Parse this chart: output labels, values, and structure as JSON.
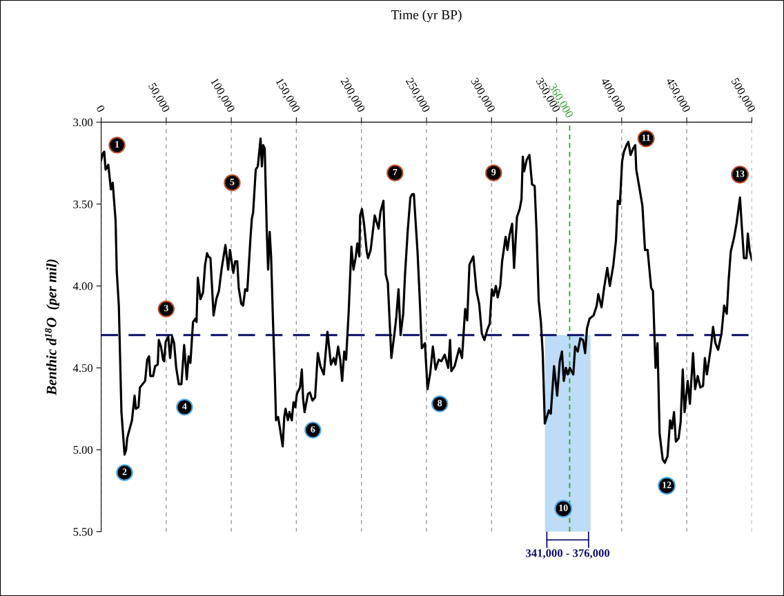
{
  "chart_data": {
    "type": "line",
    "xlabel": "Time (yr BP)",
    "ylabel": "Benthic d$^{18}$O  (per mil)",
    "xlim": [
      0,
      500000
    ],
    "ylim": [
      5.5,
      3.0
    ],
    "xticks": [
      0,
      {
        "value": 50000,
        "label": "50,000"
      },
      {
        "value": 100000,
        "label": "100,000"
      },
      {
        "value": 150000,
        "label": "150,000"
      },
      {
        "value": 200000,
        "label": "200,000"
      },
      {
        "value": 250000,
        "label": "250,000"
      },
      {
        "value": 300000,
        "label": "300,000"
      },
      {
        "value": 350000,
        "label": "350,000"
      },
      {
        "value": 400000,
        "label": "400,000"
      },
      {
        "value": 450000,
        "label": "450,000"
      },
      {
        "value": 500000,
        "label": "500,000"
      }
    ],
    "yticks": [
      {
        "value": 3.0,
        "label": "3.00"
      },
      {
        "value": 3.5,
        "label": "3.50"
      },
      {
        "value": 4.0,
        "label": "4.00"
      },
      {
        "value": 4.5,
        "label": "4.50"
      },
      {
        "value": 5.0,
        "label": "5.00"
      },
      {
        "value": 5.5,
        "label": "5.50"
      }
    ],
    "grid": "x",
    "legend": false,
    "marker": "none",
    "line_style": "solid",
    "ref_lines": [
      {
        "axis": "y",
        "value": 4.3,
        "color": "#0d0d6b",
        "line_style": "dashed"
      },
      {
        "axis": "x",
        "value": 360000,
        "label": "360,000",
        "color": "#2ca02c",
        "line_style": "dashed"
      }
    ],
    "bands": [
      {
        "axis": "x",
        "from": 341000,
        "to": 376000,
        "label": "341,000 - 376,000",
        "color": "#bcdcf7"
      }
    ],
    "annotations": [
      {
        "text": "1",
        "x": 12200,
        "y": 3.14
      },
      {
        "text": "2",
        "x": 18000,
        "y": 5.14
      },
      {
        "text": "3",
        "x": 50000,
        "y": 4.14
      },
      {
        "text": "4",
        "x": 64100,
        "y": 4.74
      },
      {
        "text": "5",
        "x": 100700,
        "y": 3.37
      },
      {
        "text": "6",
        "x": 162700,
        "y": 4.88
      },
      {
        "text": "7",
        "x": 225800,
        "y": 3.31
      },
      {
        "text": "8",
        "x": 260200,
        "y": 4.72
      },
      {
        "text": "9",
        "x": 301600,
        "y": 3.31
      },
      {
        "text": "10",
        "x": 355100,
        "y": 5.36
      },
      {
        "text": "11",
        "x": 418700,
        "y": 3.1
      },
      {
        "text": "12",
        "x": 434600,
        "y": 5.22
      },
      {
        "text": "13",
        "x": 490800,
        "y": 3.32
      }
    ],
    "series": [
      {
        "color": "#000000",
        "x": [
          0,
          1400,
          2400,
          3400,
          5500,
          7500,
          8900,
          11100,
          12000,
          13600,
          15600,
          18000,
          19200,
          20000,
          22000,
          23700,
          25700,
          26700,
          28700,
          29800,
          32800,
          33800,
          35400,
          36800,
          37800,
          39900,
          41500,
          43500,
          44300,
          46000,
          47600,
          48400,
          49600,
          51600,
          53000,
          54600,
          56100,
          57700,
          59700,
          61700,
          63800,
          65800,
          67200,
          68600,
          70600,
          72300,
          73300,
          74300,
          76300,
          78300,
          79900,
          81400,
          82400,
          84000,
          86400,
          88500,
          90500,
          92500,
          95500,
          97600,
          99000,
          100600,
          101600,
          103000,
          104600,
          105700,
          107700,
          109100,
          110700,
          112300,
          114800,
          115800,
          116800,
          118800,
          120400,
          122500,
          123500,
          124500,
          125700,
          127300,
          128300,
          129500,
          130600,
          132000,
          133400,
          134400,
          136000,
          137400,
          139500,
          140700,
          141700,
          143500,
          144700,
          146500,
          147800,
          149200,
          150400,
          152800,
          154200,
          155200,
          156300,
          158900,
          160400,
          162400,
          164400,
          166500,
          168500,
          171100,
          173900,
          176600,
          178700,
          180100,
          182100,
          183700,
          185200,
          186800,
          188200,
          190200,
          192300,
          193900,
          195500,
          196900,
          198400,
          199000,
          200400,
          202000,
          204100,
          205100,
          207100,
          210200,
          213200,
          214600,
          216900,
          218700,
          220300,
          223000,
          225400,
          226800,
          228500,
          230100,
          232100,
          233500,
          235600,
          237600,
          239000,
          240300,
          243100,
          244700,
          246400,
          248800,
          250800,
          252900,
          254900,
          257000,
          259400,
          261400,
          264000,
          266700,
          268100,
          269100,
          271600,
          273200,
          275200,
          277300,
          279700,
          281300,
          283000,
          286000,
          288400,
          290500,
          292500,
          294500,
          296600,
          298600,
          300200,
          301600,
          303300,
          304700,
          306700,
          308100,
          310800,
          312200,
          313800,
          315800,
          317300,
          319500,
          321600,
          323000,
          324000,
          325000,
          327000,
          329100,
          331100,
          333100,
          334600,
          336200,
          337900,
          339300,
          340900,
          344000,
          345500,
          348000,
          350400,
          352400,
          354100,
          355500,
          357100,
          358500,
          360100,
          362800,
          364200,
          366200,
          368200,
          370300,
          371900,
          373300,
          375300,
          378400,
          380800,
          382000,
          384500,
          386500,
          388900,
          390900,
          393600,
          395600,
          397000,
          398600,
          400300,
          401700,
          403700,
          405100,
          406800,
          408800,
          410400,
          411200,
          413800,
          415900,
          417900,
          419900,
          422600,
          424000,
          426000,
          427500,
          429100,
          431500,
          433100,
          435200,
          437200,
          438600,
          440200,
          441600,
          443700,
          445300,
          446900,
          448300,
          450700,
          452400,
          454800,
          456400,
          458400,
          460400,
          462500,
          463900,
          465500,
          468600,
          470200,
          472000,
          474100,
          476700,
          478700,
          480700,
          482200,
          483800,
          486200,
          488200,
          490900,
          492300,
          493900,
          495900,
          496900,
          498400,
          500000
        ],
        "values": [
          3.23,
          3.19,
          3.18,
          3.29,
          3.26,
          3.41,
          3.37,
          3.6,
          3.91,
          4.12,
          4.77,
          5.03,
          5.0,
          4.93,
          4.87,
          4.82,
          4.67,
          4.75,
          4.74,
          4.62,
          4.59,
          4.58,
          4.45,
          4.43,
          4.55,
          4.55,
          4.49,
          4.48,
          4.33,
          4.37,
          4.45,
          4.46,
          4.34,
          4.31,
          4.44,
          4.31,
          4.35,
          4.5,
          4.6,
          4.6,
          4.36,
          4.57,
          4.43,
          4.47,
          4.22,
          4.2,
          4.22,
          3.95,
          4.08,
          4.04,
          3.87,
          3.8,
          3.82,
          3.83,
          4.18,
          4.08,
          4.03,
          3.9,
          3.75,
          3.9,
          3.78,
          3.87,
          3.92,
          3.85,
          3.85,
          4.01,
          4.11,
          4.12,
          4.02,
          4.03,
          3.7,
          3.59,
          3.55,
          3.29,
          3.27,
          3.1,
          3.27,
          3.14,
          3.16,
          3.67,
          3.9,
          3.67,
          3.82,
          4.2,
          4.54,
          4.82,
          4.8,
          4.87,
          4.98,
          4.8,
          4.75,
          4.82,
          4.77,
          4.82,
          4.71,
          4.74,
          4.66,
          4.62,
          4.51,
          4.69,
          4.77,
          4.66,
          4.65,
          4.7,
          4.68,
          4.41,
          4.49,
          4.54,
          4.28,
          4.48,
          4.44,
          4.48,
          4.37,
          4.45,
          4.58,
          4.4,
          4.45,
          4.16,
          3.76,
          3.9,
          3.83,
          3.74,
          3.82,
          3.57,
          3.53,
          3.62,
          3.79,
          3.83,
          3.78,
          3.57,
          3.65,
          3.55,
          3.48,
          3.93,
          3.98,
          4.44,
          4.29,
          4.19,
          4.02,
          4.3,
          4.17,
          3.93,
          3.66,
          3.46,
          3.44,
          3.44,
          3.79,
          4.06,
          4.38,
          4.35,
          4.63,
          4.53,
          4.37,
          4.51,
          4.45,
          4.46,
          4.42,
          4.5,
          4.33,
          4.52,
          4.49,
          4.44,
          4.38,
          4.44,
          4.14,
          4.21,
          3.87,
          3.82,
          4.03,
          4.11,
          4.29,
          4.33,
          4.27,
          4.23,
          4.02,
          4.06,
          4.0,
          4.07,
          4.0,
          3.85,
          3.7,
          3.78,
          3.69,
          3.62,
          3.89,
          3.58,
          3.53,
          3.47,
          3.21,
          3.3,
          3.23,
          3.2,
          3.38,
          3.39,
          3.67,
          4.09,
          4.22,
          4.41,
          4.84,
          4.76,
          4.78,
          4.49,
          4.67,
          4.46,
          4.4,
          4.58,
          4.5,
          4.54,
          4.5,
          4.54,
          4.37,
          4.4,
          4.32,
          4.33,
          4.41,
          4.26,
          4.2,
          4.18,
          4.12,
          4.05,
          4.13,
          4.01,
          3.89,
          4.0,
          3.87,
          3.72,
          3.48,
          3.5,
          3.24,
          3.18,
          3.14,
          3.12,
          3.2,
          3.16,
          3.14,
          3.29,
          3.41,
          3.51,
          3.78,
          3.78,
          4.01,
          4.03,
          4.5,
          4.35,
          4.9,
          5.06,
          5.08,
          5.04,
          4.82,
          4.87,
          4.77,
          4.95,
          4.93,
          4.83,
          4.51,
          4.77,
          4.58,
          4.72,
          4.41,
          4.63,
          4.55,
          4.62,
          4.61,
          4.44,
          4.54,
          4.37,
          4.25,
          4.35,
          4.39,
          4.29,
          4.12,
          4.17,
          3.96,
          3.79,
          3.71,
          3.62,
          3.46,
          3.64,
          3.83,
          3.83,
          3.68,
          3.79,
          3.84
        ]
      }
    ]
  }
}
